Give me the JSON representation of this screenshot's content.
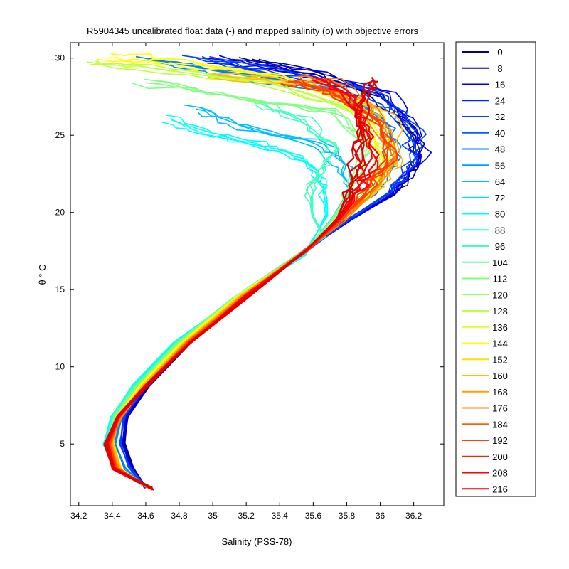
{
  "chart_data": {
    "type": "line",
    "title": "R5904345 uncalibrated float data (-) and mapped salinity (o) with objective errors",
    "xlabel": "Salinity (PSS-78)",
    "ylabel": "θ ° C",
    "xlim": [
      34.15,
      36.38
    ],
    "ylim": [
      1.0,
      31.0
    ],
    "xticks": [
      34.2,
      34.4,
      34.6,
      34.8,
      35,
      35.2,
      35.4,
      35.6,
      35.8,
      36,
      36.2
    ],
    "xtick_labels": [
      "34.2",
      "34.4",
      "34.6",
      "34.8",
      "35",
      "35.2",
      "35.4",
      "35.6",
      "35.8",
      "36",
      "36.2"
    ],
    "yticks": [
      5,
      10,
      15,
      20,
      25,
      30
    ],
    "ytick_labels": [
      "5",
      "10",
      "15",
      "20",
      "25",
      "30"
    ],
    "grid": false,
    "legend_position": "right-outside",
    "legend_labels": [
      "0",
      "8",
      "16",
      "24",
      "32",
      "40",
      "48",
      "56",
      "64",
      "72",
      "80",
      "88",
      "96",
      "104",
      "112",
      "120",
      "128",
      "136",
      "144",
      "152",
      "160",
      "168",
      "176",
      "184",
      "192",
      "200",
      "208",
      "216"
    ],
    "legend_colors": [
      "#00008f",
      "#0000bf",
      "#0000ef",
      "#0020ff",
      "#0040ff",
      "#0060ff",
      "#0080ff",
      "#009fff",
      "#00bfff",
      "#00dfff",
      "#00ffff",
      "#20ffdf",
      "#40ffbf",
      "#60ff9f",
      "#80ff80",
      "#9fff60",
      "#bfff40",
      "#dfff20",
      "#ffff00",
      "#ffdf00",
      "#ffbf00",
      "#ff9f00",
      "#ff8000",
      "#ff6000",
      "#ff4000",
      "#ff2000",
      "#ff0000",
      "#df0000"
    ],
    "profile_groups": [
      {
        "label": "0",
        "color": "#00008f",
        "points": [
          [
            34.6,
            2.2
          ],
          [
            34.52,
            3.5
          ],
          [
            34.47,
            5.0
          ],
          [
            34.49,
            6.8
          ],
          [
            34.62,
            8.8
          ],
          [
            34.86,
            11.5
          ],
          [
            35.2,
            14.6
          ],
          [
            35.55,
            17.5
          ],
          [
            35.82,
            19.5
          ],
          [
            36.08,
            21.2
          ],
          [
            36.22,
            23.0
          ],
          [
            36.21,
            25.0
          ],
          [
            36.0,
            27.5
          ],
          [
            35.6,
            29.0
          ],
          [
            35.2,
            29.8
          ]
        ]
      },
      {
        "label": "16",
        "color": "#0000ef",
        "points": [
          [
            34.6,
            2.2
          ],
          [
            34.51,
            3.5
          ],
          [
            34.46,
            5.0
          ],
          [
            34.48,
            6.8
          ],
          [
            34.61,
            8.8
          ],
          [
            34.85,
            11.5
          ],
          [
            35.19,
            14.6
          ],
          [
            35.55,
            17.5
          ],
          [
            35.82,
            19.5
          ],
          [
            36.08,
            21.3
          ],
          [
            36.24,
            23.2
          ],
          [
            36.22,
            25.2
          ],
          [
            36.02,
            27.6
          ],
          [
            35.5,
            29.1
          ],
          [
            35.05,
            29.9
          ]
        ]
      },
      {
        "label": "32",
        "color": "#0040ff",
        "points": [
          [
            34.6,
            2.2
          ],
          [
            34.5,
            3.5
          ],
          [
            34.45,
            5.0
          ],
          [
            34.47,
            6.8
          ],
          [
            34.6,
            8.8
          ],
          [
            34.84,
            11.5
          ],
          [
            35.18,
            14.6
          ],
          [
            35.55,
            17.5
          ],
          [
            35.8,
            19.5
          ],
          [
            36.05,
            21.3
          ],
          [
            36.2,
            23.3
          ],
          [
            36.18,
            25.4
          ],
          [
            35.95,
            27.8
          ],
          [
            35.3,
            29.3
          ],
          [
            34.9,
            30.0
          ]
        ]
      },
      {
        "label": "48",
        "color": "#0080ff",
        "points": [
          [
            34.6,
            2.2
          ],
          [
            34.48,
            3.4
          ],
          [
            34.42,
            5.0
          ],
          [
            34.45,
            6.8
          ],
          [
            34.58,
            8.8
          ],
          [
            34.82,
            11.5
          ],
          [
            35.16,
            14.5
          ],
          [
            35.55,
            17.5
          ],
          [
            35.78,
            19.6
          ],
          [
            35.98,
            21.5
          ],
          [
            36.1,
            23.5
          ],
          [
            36.05,
            25.5
          ],
          [
            35.75,
            27.8
          ],
          [
            35.0,
            29.2
          ],
          [
            34.6,
            30.0
          ]
        ]
      },
      {
        "label": "64",
        "color": "#00bfff",
        "points": [
          [
            34.58,
            2.3
          ],
          [
            34.44,
            3.4
          ],
          [
            34.38,
            5.0
          ],
          [
            34.42,
            6.8
          ],
          [
            34.55,
            8.8
          ],
          [
            34.79,
            11.5
          ],
          [
            35.14,
            14.4
          ],
          [
            35.55,
            17.4
          ],
          [
            35.72,
            19.7
          ],
          [
            35.82,
            21.6
          ],
          [
            35.78,
            23.2
          ],
          [
            35.6,
            24.5
          ],
          [
            35.2,
            25.5
          ],
          [
            34.9,
            26.7
          ]
        ]
      },
      {
        "label": "80",
        "color": "#00ffff",
        "points": [
          [
            34.57,
            2.4
          ],
          [
            34.42,
            3.4
          ],
          [
            34.35,
            5.0
          ],
          [
            34.4,
            6.8
          ],
          [
            34.53,
            8.8
          ],
          [
            34.77,
            11.5
          ],
          [
            35.12,
            14.3
          ],
          [
            35.55,
            17.3
          ],
          [
            35.68,
            19.8
          ],
          [
            35.66,
            21.8
          ],
          [
            35.55,
            23.3
          ],
          [
            35.3,
            24.3
          ],
          [
            34.98,
            25.2
          ],
          [
            34.75,
            26.0
          ]
        ]
      },
      {
        "label": "96",
        "color": "#40ffbf",
        "points": [
          [
            34.57,
            2.4
          ],
          [
            34.42,
            3.4
          ],
          [
            34.36,
            5.0
          ],
          [
            34.41,
            6.8
          ],
          [
            34.54,
            8.8
          ],
          [
            34.78,
            11.5
          ],
          [
            35.12,
            14.4
          ],
          [
            35.52,
            17.3
          ],
          [
            35.67,
            18.4
          ],
          [
            35.6,
            19.8
          ],
          [
            35.58,
            21.8
          ],
          [
            35.75,
            24.0
          ],
          [
            35.55,
            26.0
          ],
          [
            35.25,
            27.0
          ]
        ]
      },
      {
        "label": "112",
        "color": "#80ff80",
        "points": [
          [
            34.58,
            2.4
          ],
          [
            34.43,
            3.4
          ],
          [
            34.37,
            5.0
          ],
          [
            34.42,
            6.8
          ],
          [
            34.55,
            8.8
          ],
          [
            34.79,
            11.5
          ],
          [
            35.14,
            14.5
          ],
          [
            35.55,
            17.5
          ],
          [
            35.72,
            19.6
          ],
          [
            35.82,
            21.5
          ],
          [
            35.95,
            24.0
          ],
          [
            35.7,
            26.5
          ],
          [
            35.1,
            27.6
          ],
          [
            34.6,
            28.4
          ]
        ]
      },
      {
        "label": "128",
        "color": "#bfff40",
        "points": [
          [
            34.59,
            2.3
          ],
          [
            34.45,
            3.4
          ],
          [
            34.39,
            5.0
          ],
          [
            34.43,
            6.8
          ],
          [
            34.56,
            8.8
          ],
          [
            34.8,
            11.5
          ],
          [
            35.15,
            14.5
          ],
          [
            35.55,
            17.5
          ],
          [
            35.75,
            19.5
          ],
          [
            35.92,
            21.3
          ],
          [
            36.02,
            23.5
          ],
          [
            35.85,
            26.5
          ],
          [
            35.2,
            28.5
          ],
          [
            34.55,
            29.5
          ],
          [
            34.3,
            29.8
          ]
        ]
      },
      {
        "label": "144",
        "color": "#ffff00",
        "points": [
          [
            34.6,
            2.3
          ],
          [
            34.45,
            3.4
          ],
          [
            34.4,
            5.0
          ],
          [
            34.44,
            6.8
          ],
          [
            34.57,
            8.8
          ],
          [
            34.81,
            11.5
          ],
          [
            35.16,
            14.6
          ],
          [
            35.55,
            17.5
          ],
          [
            35.76,
            19.5
          ],
          [
            35.95,
            21.3
          ],
          [
            36.05,
            23.4
          ],
          [
            35.92,
            26.6
          ],
          [
            35.35,
            28.8
          ],
          [
            34.7,
            29.7
          ],
          [
            34.35,
            30.0
          ]
        ]
      },
      {
        "label": "160",
        "color": "#ffbf00",
        "points": [
          [
            34.6,
            2.2
          ],
          [
            34.45,
            3.4
          ],
          [
            34.4,
            5.0
          ],
          [
            34.44,
            6.8
          ],
          [
            34.58,
            8.8
          ],
          [
            34.82,
            11.5
          ],
          [
            35.17,
            14.6
          ],
          [
            35.55,
            17.5
          ],
          [
            35.77,
            19.5
          ],
          [
            35.97,
            21.3
          ],
          [
            36.1,
            23.4
          ],
          [
            36.0,
            26.5
          ],
          [
            35.6,
            28.2
          ],
          [
            35.0,
            29.0
          ]
        ]
      },
      {
        "label": "176",
        "color": "#ff8000",
        "points": [
          [
            34.62,
            2.1
          ],
          [
            34.44,
            3.4
          ],
          [
            34.39,
            5.0
          ],
          [
            34.45,
            6.8
          ],
          [
            34.6,
            8.8
          ],
          [
            34.84,
            11.5
          ],
          [
            35.18,
            14.6
          ],
          [
            35.55,
            17.5
          ],
          [
            35.78,
            19.5
          ],
          [
            35.96,
            21.4
          ],
          [
            36.08,
            23.5
          ],
          [
            35.95,
            26.8
          ],
          [
            35.7,
            28.5
          ],
          [
            35.5,
            28.8
          ]
        ]
      },
      {
        "label": "192",
        "color": "#ff4000",
        "points": [
          [
            34.63,
            2.1
          ],
          [
            34.42,
            3.4
          ],
          [
            34.38,
            5.0
          ],
          [
            34.44,
            6.8
          ],
          [
            34.6,
            8.8
          ],
          [
            34.85,
            11.5
          ],
          [
            35.19,
            14.6
          ],
          [
            35.55,
            17.5
          ],
          [
            35.77,
            19.6
          ],
          [
            35.93,
            21.5
          ],
          [
            36.04,
            23.6
          ],
          [
            36.0,
            25.8
          ],
          [
            35.75,
            27.8
          ],
          [
            35.45,
            28.5
          ]
        ]
      },
      {
        "label": "208",
        "color": "#ff0000",
        "points": [
          [
            34.64,
            2.1
          ],
          [
            34.41,
            3.4
          ],
          [
            34.37,
            5.0
          ],
          [
            34.44,
            6.8
          ],
          [
            34.61,
            8.8
          ],
          [
            34.86,
            11.5
          ],
          [
            35.2,
            14.6
          ],
          [
            35.55,
            17.5
          ],
          [
            35.76,
            19.6
          ],
          [
            35.88,
            21.5
          ],
          [
            35.95,
            23.5
          ],
          [
            35.9,
            25.5
          ],
          [
            35.82,
            27.5
          ],
          [
            35.6,
            28.8
          ]
        ]
      },
      {
        "label": "216",
        "color": "#df0000",
        "points": [
          [
            34.64,
            2.1
          ],
          [
            34.4,
            3.4
          ],
          [
            34.36,
            5.0
          ],
          [
            34.43,
            6.8
          ],
          [
            34.61,
            8.8
          ],
          [
            34.86,
            11.5
          ],
          [
            35.21,
            14.6
          ],
          [
            35.56,
            17.5
          ],
          [
            35.74,
            19.6
          ],
          [
            35.82,
            21.5
          ],
          [
            35.86,
            23.5
          ],
          [
            35.88,
            25.5
          ],
          [
            35.9,
            27.3
          ],
          [
            35.96,
            28.6
          ]
        ]
      }
    ]
  }
}
